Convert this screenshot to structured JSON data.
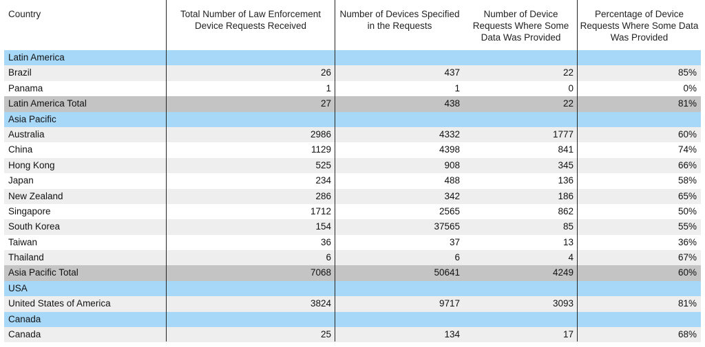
{
  "headers": {
    "country": "Country",
    "requests": "Total Number of Law Enforcement Device Requests Received",
    "devices": "Number of Devices Specified in the Requests",
    "provided": "Number of Device Requests Where Some Data Was Provided",
    "percent": "Percentage of Device Requests Where Some Data Was Provided"
  },
  "rows": [
    {
      "type": "section",
      "name": "Latin America",
      "requests": "",
      "devices": "",
      "provided": "",
      "percent": ""
    },
    {
      "type": "alt",
      "name": "Brazil",
      "requests": "26",
      "devices": "437",
      "provided": "22",
      "percent": "85%"
    },
    {
      "type": "plain",
      "name": "Panama",
      "requests": "1",
      "devices": "1",
      "provided": "0",
      "percent": "0%"
    },
    {
      "type": "total",
      "name": "Latin America Total",
      "requests": "27",
      "devices": "438",
      "provided": "22",
      "percent": "81%"
    },
    {
      "type": "section",
      "name": "Asia Pacific",
      "requests": "",
      "devices": "",
      "provided": "",
      "percent": ""
    },
    {
      "type": "alt",
      "name": "Australia",
      "requests": "2986",
      "devices": "4332",
      "provided": "1777",
      "percent": "60%"
    },
    {
      "type": "plain",
      "name": "China",
      "requests": "1129",
      "devices": "4398",
      "provided": "841",
      "percent": "74%"
    },
    {
      "type": "alt",
      "name": "Hong Kong",
      "requests": "525",
      "devices": "908",
      "provided": "345",
      "percent": "66%"
    },
    {
      "type": "plain",
      "name": "Japan",
      "requests": "234",
      "devices": "488",
      "provided": "136",
      "percent": "58%"
    },
    {
      "type": "alt",
      "name": "New Zealand",
      "requests": "286",
      "devices": "342",
      "provided": "186",
      "percent": "65%"
    },
    {
      "type": "plain",
      "name": "Singapore",
      "requests": "1712",
      "devices": "2565",
      "provided": "862",
      "percent": "50%"
    },
    {
      "type": "alt",
      "name": "South Korea",
      "requests": "154",
      "devices": "37565",
      "provided": "85",
      "percent": "55%"
    },
    {
      "type": "plain",
      "name": "Taiwan",
      "requests": "36",
      "devices": "37",
      "provided": "13",
      "percent": "36%"
    },
    {
      "type": "alt",
      "name": "Thailand",
      "requests": "6",
      "devices": "6",
      "provided": "4",
      "percent": "67%"
    },
    {
      "type": "total",
      "name": "Asia Pacific Total",
      "requests": "7068",
      "devices": "50641",
      "provided": "4249",
      "percent": "60%"
    },
    {
      "type": "section",
      "name": "USA",
      "requests": "",
      "devices": "",
      "provided": "",
      "percent": ""
    },
    {
      "type": "alt",
      "name": "United States of America",
      "requests": "3824",
      "devices": "9717",
      "provided": "3093",
      "percent": "81%"
    },
    {
      "type": "section",
      "name": "Canada",
      "requests": "",
      "devices": "",
      "provided": "",
      "percent": ""
    },
    {
      "type": "alt",
      "name": "Canada",
      "requests": "25",
      "devices": "134",
      "provided": "17",
      "percent": "68%"
    }
  ]
}
